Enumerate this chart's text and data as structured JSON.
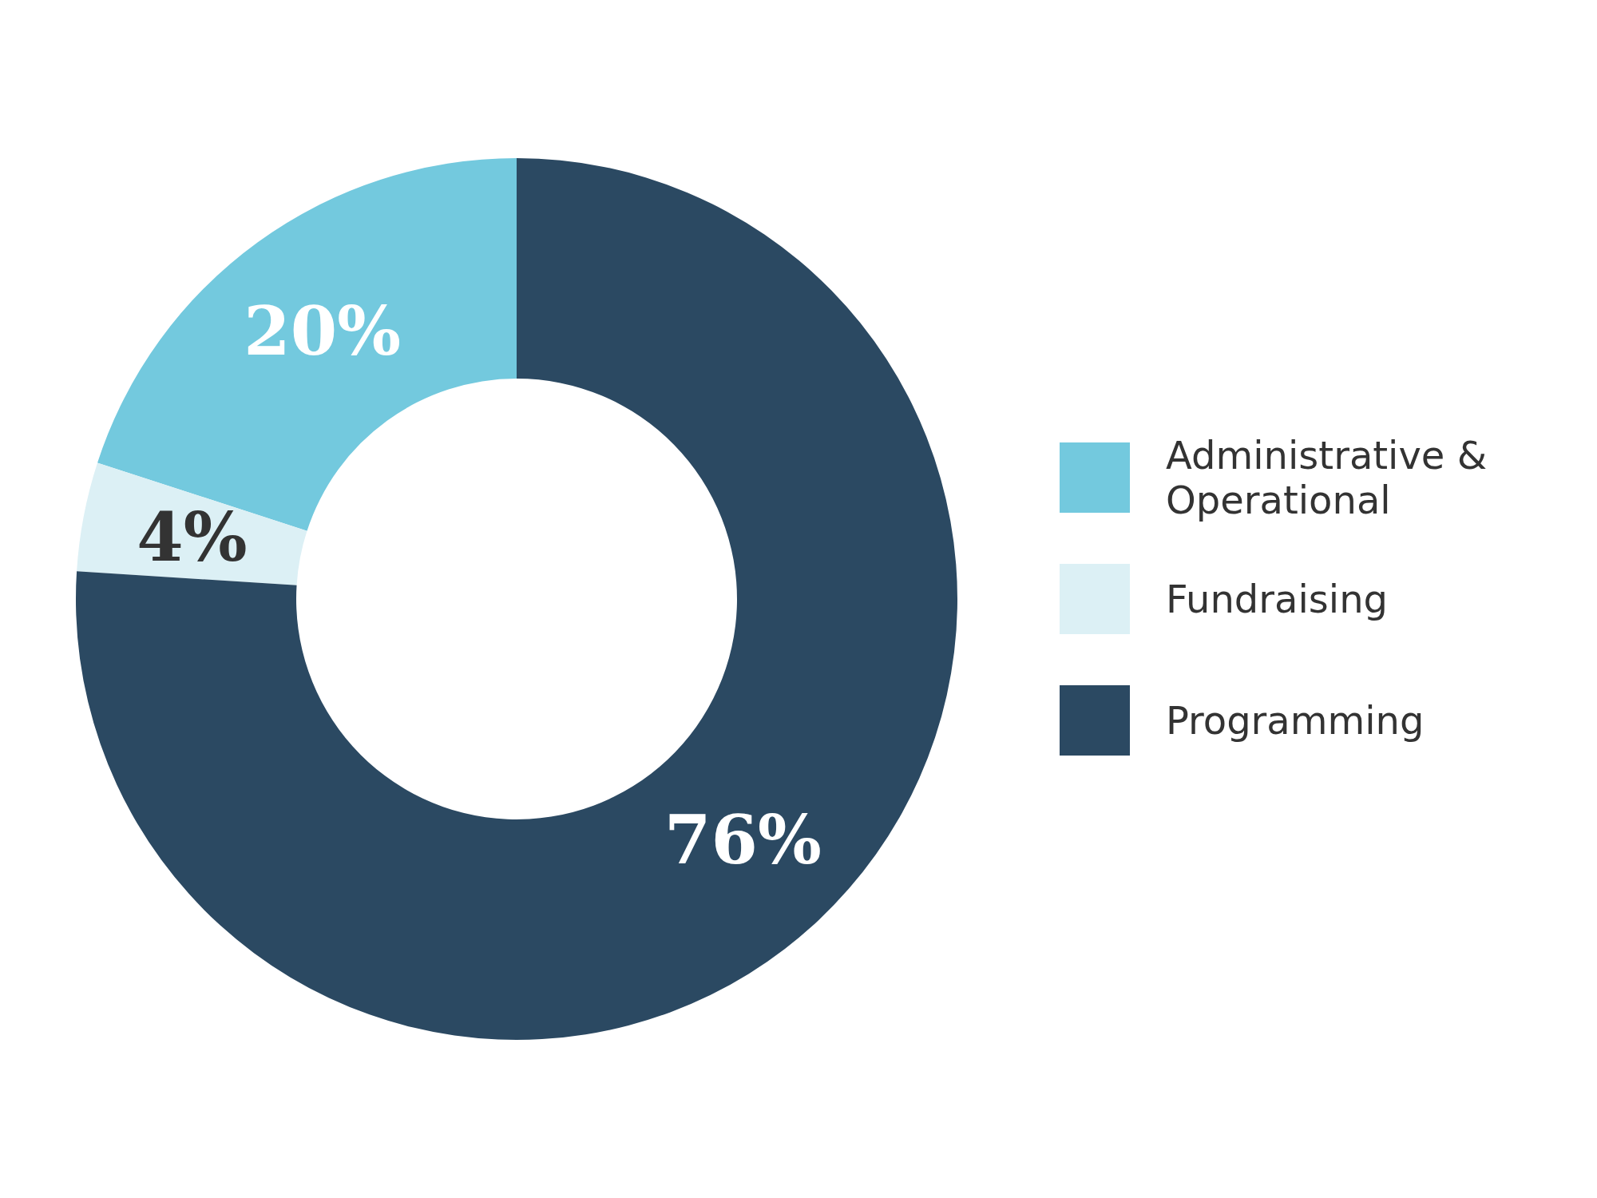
{
  "chart_data": {
    "type": "donut",
    "categories": [
      "Administrative & Operational",
      "Fundraising",
      "Programming"
    ],
    "values": [
      20,
      4,
      76
    ],
    "colors": [
      "#73c9de",
      "#dcf0f5",
      "#2b4962"
    ],
    "value_labels": [
      "20%",
      "4%",
      "76%"
    ],
    "legend": "right"
  }
}
